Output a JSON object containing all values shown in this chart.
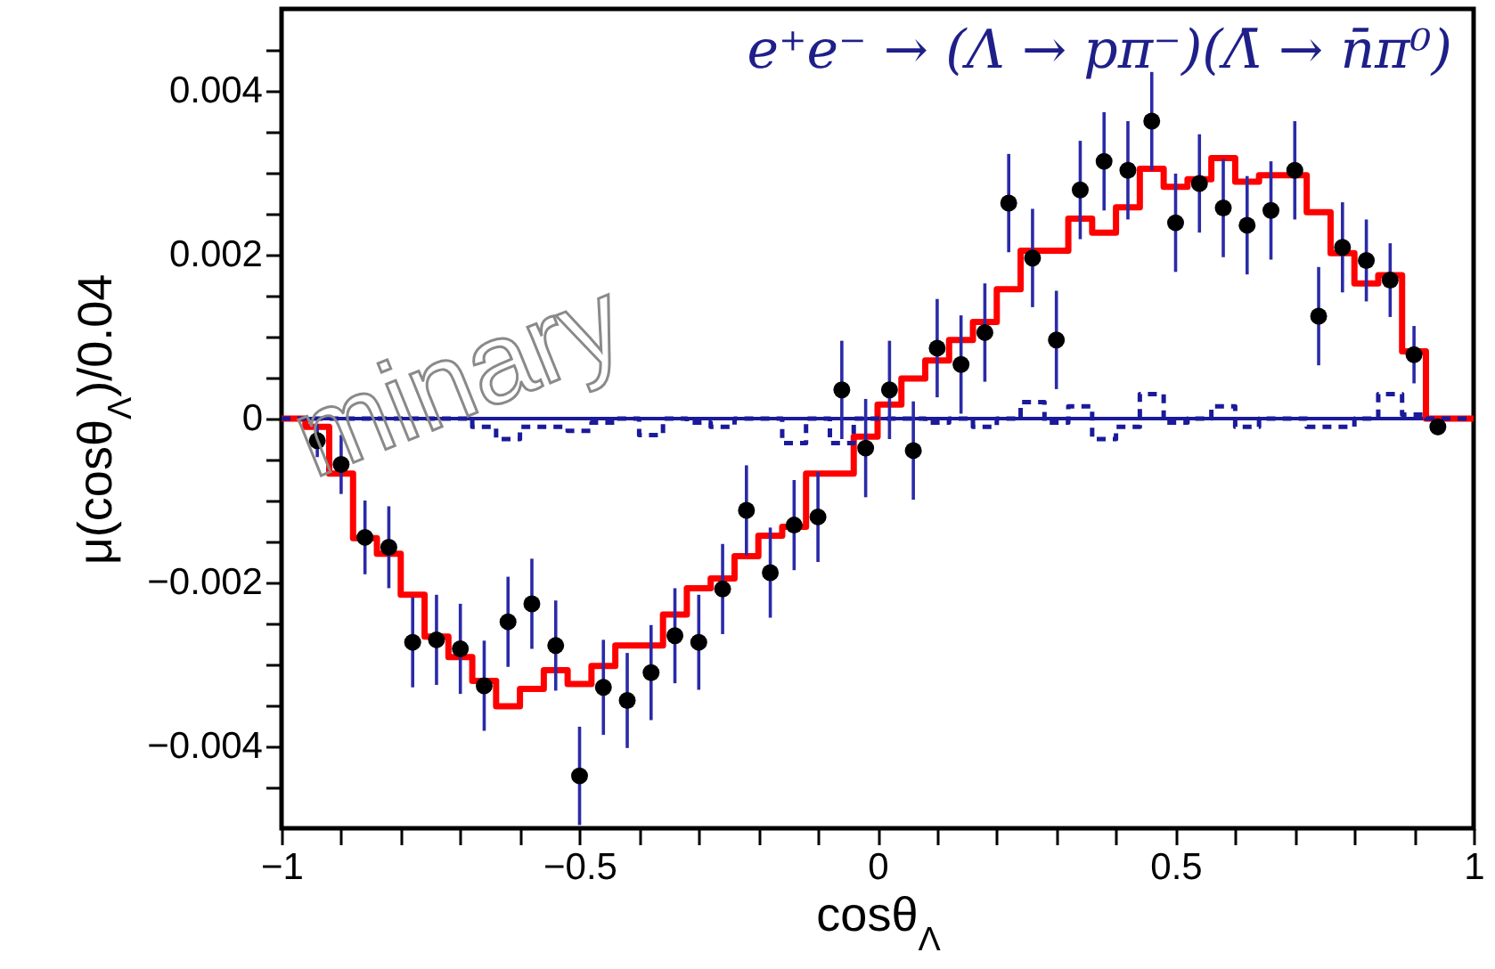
{
  "chart_data": {
    "type": "scatter",
    "xlabel": "cosθ$_{Λ}$",
    "ylabel": "μ(cosθ$_{Λ}$)/0.04",
    "annotations": [
      "e⁺e⁻ → (Λ → pπ⁻)(Λ̄ → n̄π⁰)",
      "minary"
    ],
    "xlim": [
      -1,
      1
    ],
    "ylim": [
      -0.005,
      0.005
    ],
    "xticks": [
      {
        "value": -1,
        "label": "−1"
      },
      {
        "value": -0.9,
        "label": null
      },
      {
        "value": -0.8,
        "label": null
      },
      {
        "value": -0.7,
        "label": null
      },
      {
        "value": -0.6,
        "label": null
      },
      {
        "value": -0.5,
        "label": "−0.5"
      },
      {
        "value": -0.4,
        "label": null
      },
      {
        "value": -0.3,
        "label": null
      },
      {
        "value": -0.2,
        "label": null
      },
      {
        "value": -0.1,
        "label": null
      },
      0,
      {
        "value": 0.1,
        "label": null
      },
      {
        "value": 0.2,
        "label": null
      },
      {
        "value": 0.3,
        "label": null
      },
      {
        "value": 0.4,
        "label": null
      },
      0.5,
      {
        "value": 0.6,
        "label": null
      },
      {
        "value": 0.7,
        "label": null
      },
      {
        "value": 0.8,
        "label": null
      },
      {
        "value": 0.9,
        "label": null
      },
      1
    ],
    "yticks": [
      {
        "value": -0.0045,
        "label": null
      },
      {
        "value": -0.004,
        "label": "−0.004"
      },
      {
        "value": -0.0035,
        "label": null
      },
      {
        "value": -0.003,
        "label": null
      },
      {
        "value": -0.0025,
        "label": null
      },
      {
        "value": -0.002,
        "label": "−0.002"
      },
      {
        "value": -0.0015,
        "label": null
      },
      {
        "value": -0.001,
        "label": null
      },
      {
        "value": -0.0005,
        "label": null
      },
      0,
      {
        "value": 0.0005,
        "label": null
      },
      {
        "value": 0.001,
        "label": null
      },
      {
        "value": 0.0015,
        "label": null
      },
      0.002,
      {
        "value": 0.0025,
        "label": null
      },
      {
        "value": 0.003,
        "label": null
      },
      {
        "value": 0.0035,
        "label": null
      },
      0.004,
      {
        "value": 0.0045,
        "label": null
      }
    ],
    "ref_lines": [
      {
        "axis": "y",
        "value": 0,
        "color": "#1a1a9a"
      }
    ],
    "series": [
      {
        "type": "histogram",
        "color": "#ff0000",
        "bins": [
          -1,
          -0.96,
          -0.92,
          -0.88,
          -0.84,
          -0.8,
          -0.76,
          -0.72,
          -0.68,
          -0.64,
          -0.6,
          -0.56,
          -0.52,
          -0.48,
          -0.44,
          -0.4,
          -0.36,
          -0.32,
          -0.28,
          -0.24,
          -0.2,
          -0.16,
          -0.12,
          -0.08,
          -0.04,
          0,
          0.04,
          0.08,
          0.12,
          0.16,
          0.2,
          0.24,
          0.28,
          0.32,
          0.36,
          0.4,
          0.44,
          0.48,
          0.52,
          0.56,
          0.6,
          0.64,
          0.68,
          0.72,
          0.76,
          0.8,
          0.84,
          0.88,
          0.92,
          0.96,
          1
        ],
        "values": [
          0,
          -0.0001,
          -0.00067,
          -0.00146,
          -0.00165,
          -0.00215,
          -0.00266,
          -0.00291,
          -0.0032,
          -0.00351,
          -0.0033,
          -0.00307,
          -0.00324,
          -0.00302,
          -0.00277,
          -0.00277,
          -0.00239,
          -0.00207,
          -0.00195,
          -0.00168,
          -0.00143,
          -0.00132,
          -0.00067,
          -0.00067,
          -0.00022,
          0.00017,
          0.00049,
          0.00071,
          0.00096,
          0.00118,
          0.00158,
          0.00205,
          0.00205,
          0.00244,
          0.00227,
          0.00258,
          0.00305,
          0.00283,
          0.00292,
          0.00318,
          0.00289,
          0.00297,
          0.00297,
          0.00252,
          0.00202,
          0.00165,
          0.00175,
          0.00082,
          0,
          0
        ]
      },
      {
        "type": "histogram",
        "color": "#1a1a9a",
        "line_style": "dashed",
        "bins": [
          -1,
          -0.96,
          -0.92,
          -0.88,
          -0.84,
          -0.8,
          -0.76,
          -0.72,
          -0.68,
          -0.64,
          -0.6,
          -0.56,
          -0.52,
          -0.48,
          -0.44,
          -0.4,
          -0.36,
          -0.32,
          -0.28,
          -0.24,
          -0.2,
          -0.16,
          -0.12,
          -0.08,
          -0.04,
          0,
          0.04,
          0.08,
          0.12,
          0.16,
          0.2,
          0.24,
          0.28,
          0.32,
          0.36,
          0.4,
          0.44,
          0.48,
          0.52,
          0.56,
          0.6,
          0.64,
          0.68,
          0.72,
          0.76,
          0.8,
          0.84,
          0.88,
          0.92,
          0.96,
          1
        ],
        "values": [
          0,
          0,
          0,
          0,
          0,
          0,
          0,
          0,
          -0.0001,
          -0.00025,
          -0.0001,
          -0.0001,
          -0.00015,
          -5e-05,
          0,
          -0.0002,
          0,
          -5e-05,
          -0.0001,
          0,
          0,
          -0.0003,
          0,
          -0.0003,
          0,
          0,
          0,
          -5e-05,
          0,
          -0.0001,
          0,
          0.0002,
          -5e-05,
          0.00015,
          -0.00025,
          -0.0001,
          0.0003,
          -5e-05,
          0,
          0.00015,
          -0.0001,
          0,
          0,
          -0.0001,
          -0.0001,
          0,
          0.0003,
          5e-05,
          0,
          0
        ]
      },
      {
        "type": "scatter",
        "color": "#000000",
        "marker": "circle",
        "x": [
          -0.94,
          -0.9,
          -0.86,
          -0.82,
          -0.78,
          -0.74,
          -0.7,
          -0.66,
          -0.62,
          -0.58,
          -0.54,
          -0.5,
          -0.46,
          -0.42,
          -0.38,
          -0.34,
          -0.3,
          -0.26,
          -0.22,
          -0.18,
          -0.14,
          -0.1,
          -0.06,
          -0.02,
          0.02,
          0.06,
          0.1,
          0.14,
          0.18,
          0.22,
          0.26,
          0.3,
          0.34,
          0.38,
          0.42,
          0.46,
          0.5,
          0.54,
          0.58,
          0.62,
          0.66,
          0.7,
          0.74,
          0.78,
          0.82,
          0.86,
          0.9,
          0.94
        ],
        "values": [
          -0.00027,
          -0.00056,
          -0.00145,
          -0.00157,
          -0.00273,
          -0.0027,
          -0.00281,
          -0.00326,
          -0.00248,
          -0.00226,
          -0.00277,
          -0.00436,
          -0.00328,
          -0.00344,
          -0.0031,
          -0.00265,
          -0.00273,
          -0.00208,
          -0.00112,
          -0.00188,
          -0.0013,
          -0.0012,
          0.00035,
          -0.00036,
          0.00035,
          -0.00039,
          0.00086,
          0.00066,
          0.00105,
          0.00263,
          0.00196,
          0.00096,
          0.00279,
          0.00314,
          0.00303,
          0.00363,
          0.00239,
          0.00287,
          0.00257,
          0.00236,
          0.00254,
          0.00303,
          0.00125,
          0.00209,
          0.00193,
          0.00169,
          0.00078,
          -0.0001
        ],
        "errors": [
          0.0002,
          0.00036,
          0.00045,
          0.0005,
          0.00055,
          0.00055,
          0.00055,
          0.00055,
          0.00055,
          0.00055,
          0.00055,
          0.0006,
          0.00058,
          0.00058,
          0.00058,
          0.00058,
          0.00058,
          0.00055,
          0.00055,
          0.00055,
          0.00055,
          0.00055,
          0.0006,
          0.0006,
          0.0006,
          0.0006,
          0.0006,
          0.0006,
          0.0006,
          0.0006,
          0.0006,
          0.0006,
          0.0006,
          0.0006,
          0.0006,
          0.0006,
          0.0006,
          0.0006,
          0.0006,
          0.0006,
          0.0006,
          0.0006,
          0.0006,
          0.00055,
          0.0005,
          0.00045,
          0.00035,
          0.0001
        ]
      }
    ]
  }
}
